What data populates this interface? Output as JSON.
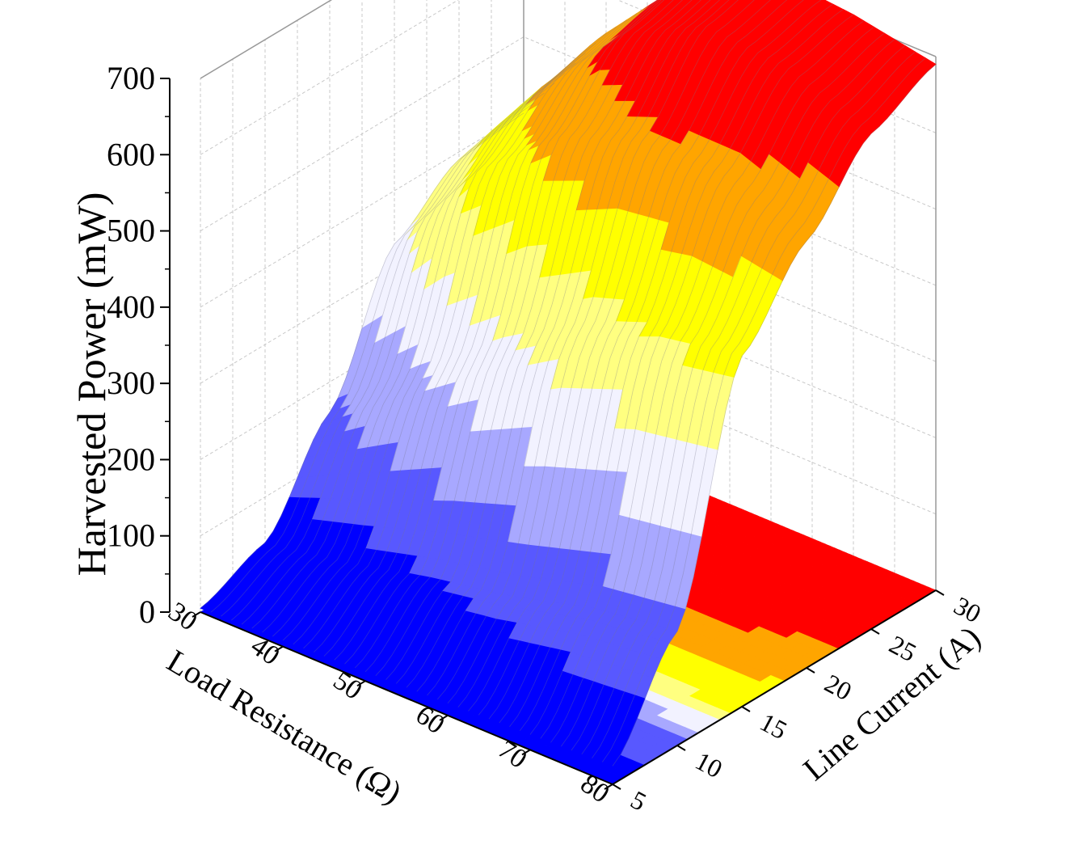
{
  "chart_data": {
    "type": "surface",
    "title": "",
    "zlabel": "Harvested Power (mW)",
    "xlabel": "Load Resistance (Ω)",
    "ylabel": "Line Current (A)",
    "x_ticks": [
      "30",
      "40",
      "50",
      "60",
      "70",
      "80"
    ],
    "y_ticks": [
      "5",
      "10",
      "15",
      "20",
      "25",
      "30"
    ],
    "z_ticks": [
      "0",
      "100",
      "200",
      "300",
      "400",
      "500",
      "600",
      "700"
    ],
    "xlim": [
      30,
      80
    ],
    "ylim": [
      5,
      30
    ],
    "zlim": [
      0,
      700
    ],
    "grid": true,
    "colormap": [
      "#0000ff",
      "#5858ff",
      "#a8a8ff",
      "#f2f2ff",
      "#ffff80",
      "#ffff00",
      "#ffa500",
      "#ff0000"
    ],
    "x": [
      30,
      40,
      50,
      60,
      70,
      80
    ],
    "y": [
      5,
      10,
      15,
      20,
      25,
      30
    ],
    "power_mW": [
      [
        5,
        8,
        12,
        16,
        20,
        24
      ],
      [
        40,
        60,
        85,
        105,
        135,
        150
      ],
      [
        160,
        245,
        325,
        395,
        440,
        460
      ],
      [
        330,
        470,
        560,
        600,
        600,
        560
      ],
      [
        390,
        530,
        645,
        700,
        690,
        650
      ],
      [
        400,
        550,
        665,
        720,
        710,
        690
      ]
    ]
  }
}
